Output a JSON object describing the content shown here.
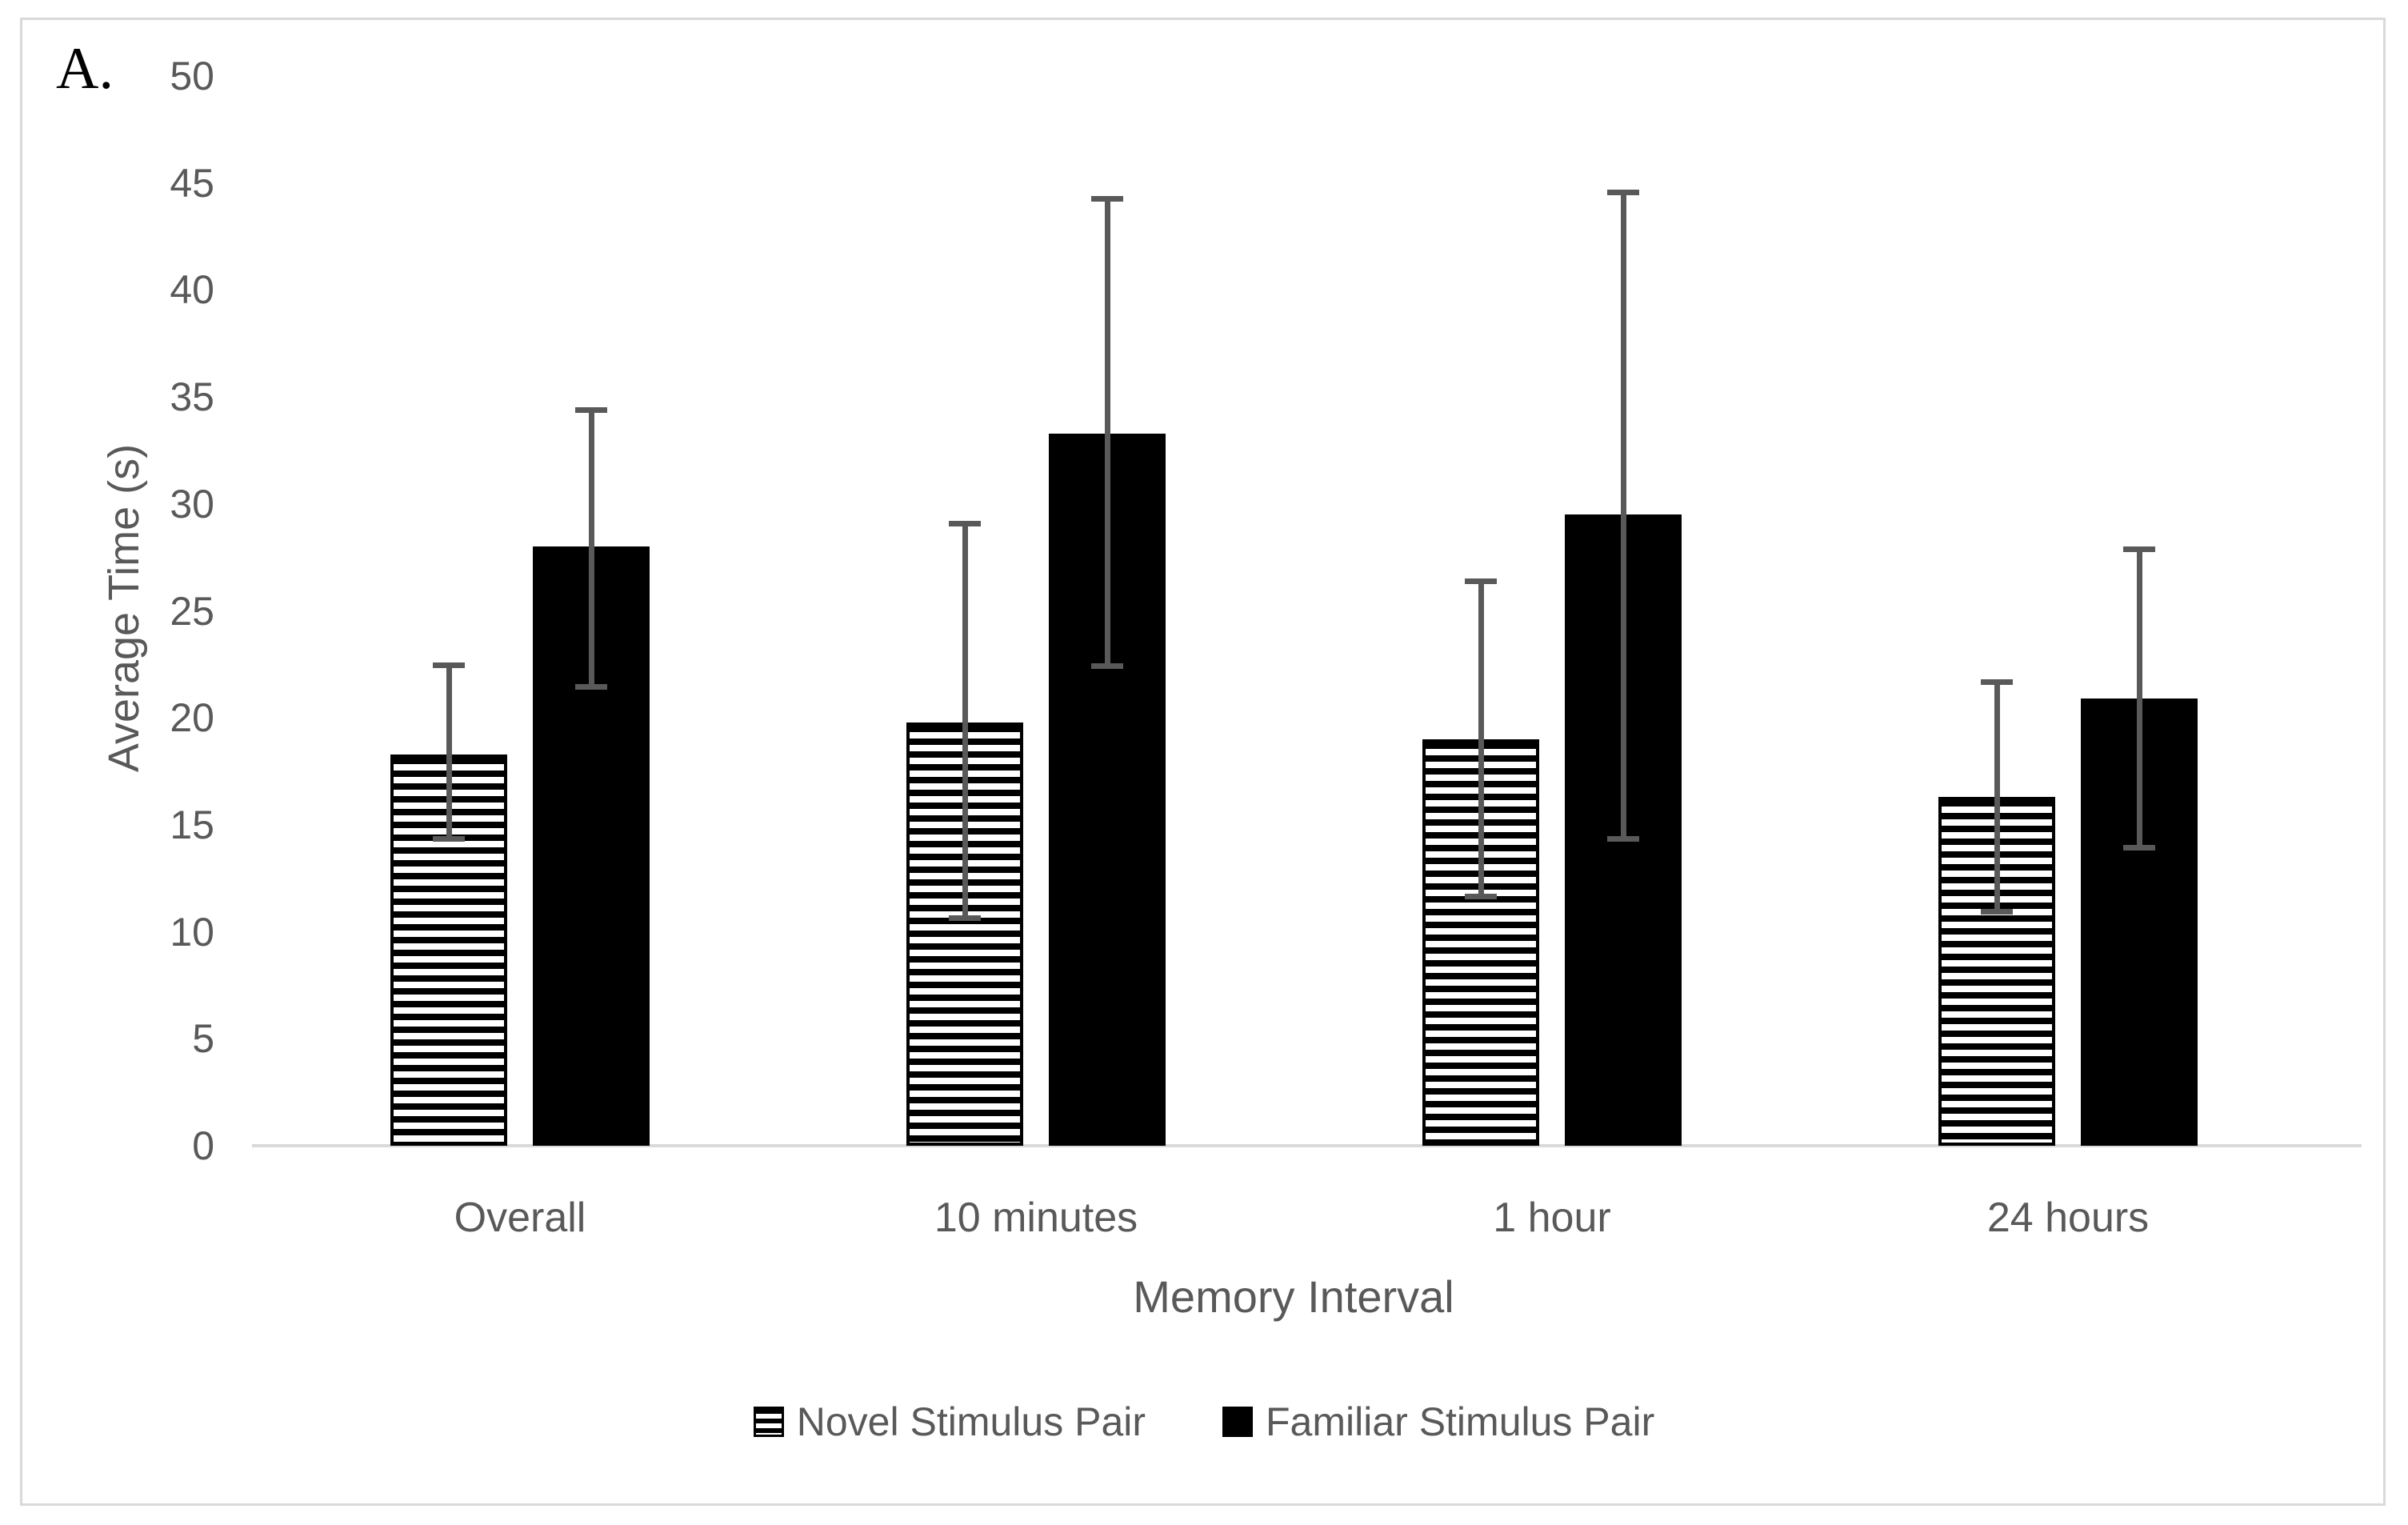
{
  "chart_data": {
    "type": "bar",
    "panel_label": "A.",
    "title": "",
    "ylabel": "Average Time (s)",
    "xlabel": "Memory Interval",
    "categories": [
      "Overall",
      "10 minutes",
      "1 hour",
      "24 hours"
    ],
    "series": [
      {
        "name": "Novel Stimulus Pair",
        "style": "striped",
        "values": [
          18.3,
          19.8,
          19.0,
          16.3
        ],
        "error_low": [
          14.2,
          10.5,
          11.5,
          10.8
        ],
        "error_high": [
          22.6,
          29.2,
          26.5,
          21.8
        ]
      },
      {
        "name": "Familiar Stimulus Pair",
        "style": "solid",
        "values": [
          28.0,
          33.3,
          29.5,
          20.9
        ],
        "error_low": [
          21.3,
          22.3,
          14.2,
          13.8
        ],
        "error_high": [
          34.5,
          44.4,
          44.7,
          28.0
        ]
      }
    ],
    "ylim": [
      0,
      50
    ],
    "yticks": [
      0,
      5,
      10,
      15,
      20,
      25,
      30,
      35,
      40,
      45,
      50
    ],
    "grid": false,
    "legend_position": "bottom",
    "colors": {
      "bar_fill": "#000000",
      "error_bar": "#595959",
      "axis_line": "#d9d9d9",
      "figure_border": "#d9d9d9",
      "text": "#595959",
      "panel_label": "#000000"
    }
  }
}
